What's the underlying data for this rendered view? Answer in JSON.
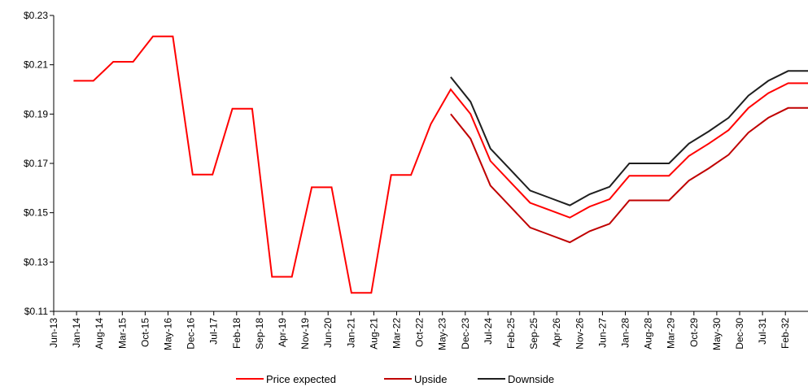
{
  "chart_data": {
    "type": "line",
    "title": "",
    "xlabel": "",
    "ylabel": "",
    "categories": [
      "Jun-13",
      "Jan-14",
      "Aug-14",
      "Mar-15",
      "Oct-15",
      "May-16",
      "Dec-16",
      "Jul-17",
      "Feb-18",
      "Sep-18",
      "Apr-19",
      "Nov-19",
      "Jun-20",
      "Jan-21",
      "Aug-21",
      "Mar-22",
      "Oct-22",
      "May-23",
      "Dec-23",
      "Jul-24",
      "Feb-25",
      "Sep-25",
      "Apr-26",
      "Nov-26",
      "Jun-27",
      "Jan-28",
      "Aug-28",
      "Mar-29",
      "Oct-29",
      "May-30",
      "Dec-30",
      "Jul-31",
      "Feb-32"
    ],
    "y_tick_labels": [
      "$0.11",
      "$0.13",
      "$0.15",
      "$0.17",
      "$0.19",
      "$0.21",
      "$0.23"
    ],
    "ylim": [
      0.11,
      0.23
    ],
    "y_ticks": [
      0.11,
      0.13,
      0.15,
      0.17,
      0.19,
      0.21,
      0.23
    ],
    "grid": false,
    "legend_position": "bottom",
    "series": [
      {
        "name": "Price expected",
        "color": "#ff0000",
        "points": [
          [
            1,
            0.2035
          ],
          [
            2,
            0.2035
          ],
          [
            3,
            0.2112
          ],
          [
            4,
            0.2112
          ],
          [
            5,
            0.2215
          ],
          [
            6,
            0.2215
          ],
          [
            7,
            0.1655
          ],
          [
            8,
            0.1655
          ],
          [
            9,
            0.1922
          ],
          [
            10,
            0.1922
          ],
          [
            11,
            0.124
          ],
          [
            12,
            0.124
          ],
          [
            13,
            0.1603
          ],
          [
            14,
            0.1603
          ],
          [
            15,
            0.1175
          ],
          [
            16,
            0.1175
          ],
          [
            17,
            0.1653
          ],
          [
            18,
            0.1653
          ],
          [
            19,
            0.186
          ],
          [
            20,
            0.2
          ],
          [
            21,
            0.19
          ],
          [
            22,
            0.171
          ],
          [
            23,
            0.1625
          ],
          [
            24,
            0.154
          ],
          [
            25,
            0.151
          ],
          [
            26,
            0.148
          ],
          [
            27,
            0.1525
          ],
          [
            28,
            0.1555
          ],
          [
            29,
            0.165
          ],
          [
            30,
            0.165
          ],
          [
            31,
            0.165
          ],
          [
            32,
            0.173
          ],
          [
            33,
            0.178
          ],
          [
            34,
            0.1835
          ],
          [
            35,
            0.1925
          ],
          [
            36,
            0.1985
          ],
          [
            37,
            0.2025
          ],
          [
            38,
            0.2025
          ]
        ]
      },
      {
        "name": "Upside",
        "color": "#c00000",
        "points": [
          [
            20,
            0.19
          ],
          [
            21,
            0.18
          ],
          [
            22,
            0.161
          ],
          [
            23,
            0.1525
          ],
          [
            24,
            0.144
          ],
          [
            25,
            0.141
          ],
          [
            26,
            0.138
          ],
          [
            27,
            0.1425
          ],
          [
            28,
            0.1455
          ],
          [
            29,
            0.155
          ],
          [
            30,
            0.155
          ],
          [
            31,
            0.155
          ],
          [
            32,
            0.163
          ],
          [
            33,
            0.168
          ],
          [
            34,
            0.1735
          ],
          [
            35,
            0.1825
          ],
          [
            36,
            0.1885
          ],
          [
            37,
            0.1925
          ],
          [
            38,
            0.1925
          ]
        ]
      },
      {
        "name": "Downside",
        "color": "#1f1f1f",
        "points": [
          [
            20,
            0.205
          ],
          [
            21,
            0.195
          ],
          [
            22,
            0.176
          ],
          [
            23,
            0.1675
          ],
          [
            24,
            0.159
          ],
          [
            25,
            0.156
          ],
          [
            26,
            0.153
          ],
          [
            27,
            0.1575
          ],
          [
            28,
            0.1605
          ],
          [
            29,
            0.17
          ],
          [
            30,
            0.17
          ],
          [
            31,
            0.17
          ],
          [
            32,
            0.178
          ],
          [
            33,
            0.183
          ],
          [
            34,
            0.1885
          ],
          [
            35,
            0.1975
          ],
          [
            36,
            0.2035
          ],
          [
            37,
            0.2075
          ],
          [
            38,
            0.2075
          ]
        ]
      }
    ]
  }
}
